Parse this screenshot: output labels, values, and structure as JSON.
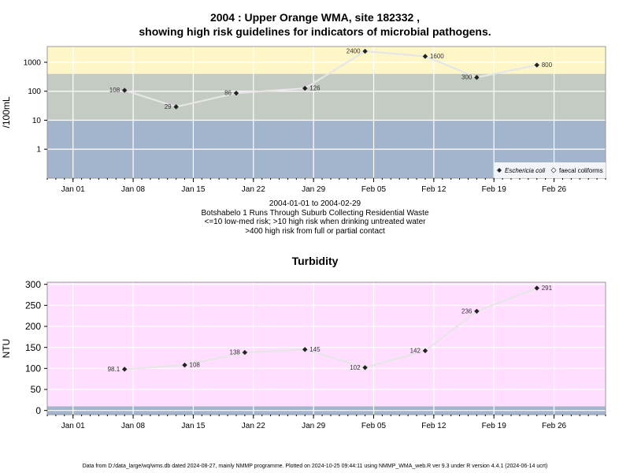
{
  "chart_data": [
    {
      "type": "line",
      "title": "2004 : Upper Orange WMA, site 182332 ,",
      "subtitle": "showing high risk guidelines for indicators of microbial pathogens.",
      "ylabel": "/100mL",
      "yscale": "log",
      "ylim": [
        0.1,
        3500
      ],
      "xlim": [
        "2003-12-29",
        "2004-03-03"
      ],
      "y_ticks": [
        {
          "label": "1",
          "value": 1
        },
        {
          "label": "10",
          "value": 10
        },
        {
          "label": "100",
          "value": 100
        },
        {
          "label": "1000",
          "value": 1000
        }
      ],
      "x_ticks": [
        {
          "label": "Jan 01",
          "date": "2004-01-01"
        },
        {
          "label": "Jan 08",
          "date": "2004-01-08"
        },
        {
          "label": "Jan 15",
          "date": "2004-01-15"
        },
        {
          "label": "Jan 22",
          "date": "2004-01-22"
        },
        {
          "label": "Jan 29",
          "date": "2004-01-29"
        },
        {
          "label": "Feb 05",
          "date": "2004-02-05"
        },
        {
          "label": "Feb 12",
          "date": "2004-02-12"
        },
        {
          "label": "Feb 19",
          "date": "2004-02-19"
        },
        {
          "label": "Feb 26",
          "date": "2004-02-26"
        }
      ],
      "bands": [
        {
          "from": 0.1,
          "to": 10,
          "color": "#a3b4cd"
        },
        {
          "from": 10,
          "to": 400,
          "color": "#c4cbc2"
        },
        {
          "from": 400,
          "to": 3500,
          "color": "#fff6c8"
        }
      ],
      "series": [
        {
          "name": "Eschericia coli",
          "points": [
            {
              "date": "2004-01-07",
              "value": 108,
              "label": "108"
            },
            {
              "date": "2004-01-13",
              "value": 29,
              "label": "29"
            },
            {
              "date": "2004-01-20",
              "value": 86,
              "label": "86"
            },
            {
              "date": "2004-01-28",
              "value": 126,
              "label": "126"
            },
            {
              "date": "2004-02-04",
              "value": 2400,
              "label": "2400"
            },
            {
              "date": "2004-02-11",
              "value": 1600,
              "label": "1600"
            },
            {
              "date": "2004-02-17",
              "value": 300,
              "label": "300"
            },
            {
              "date": "2004-02-24",
              "value": 800,
              "label": "800"
            }
          ]
        },
        {
          "name": "faecal coliforms",
          "points": []
        }
      ],
      "legend": "bottom-right",
      "grid": true,
      "caption_lines": [
        "2004-01-01 to 2004-02-29",
        "Botshabelo 1 Runs Through Suburb Collecting Residential Waste",
        "<=10 low-med risk; >10 high risk when drinking untreated water",
        ">400 high risk from full or partial contact"
      ]
    },
    {
      "type": "line",
      "title": "Turbidity",
      "ylabel": "NTU",
      "ylim": [
        -10,
        305
      ],
      "xlim": [
        "2003-12-29",
        "2004-03-03"
      ],
      "y_ticks": [
        {
          "label": "0",
          "value": 0
        },
        {
          "label": "50",
          "value": 50
        },
        {
          "label": "100",
          "value": 100
        },
        {
          "label": "150",
          "value": 150
        },
        {
          "label": "200",
          "value": 200
        },
        {
          "label": "250",
          "value": 250
        },
        {
          "label": "300",
          "value": 300
        }
      ],
      "x_ticks": [
        {
          "label": "Jan 01",
          "date": "2004-01-01"
        },
        {
          "label": "Jan 08",
          "date": "2004-01-08"
        },
        {
          "label": "Jan 15",
          "date": "2004-01-15"
        },
        {
          "label": "Jan 22",
          "date": "2004-01-22"
        },
        {
          "label": "Jan 29",
          "date": "2004-01-29"
        },
        {
          "label": "Feb 05",
          "date": "2004-02-05"
        },
        {
          "label": "Feb 12",
          "date": "2004-02-12"
        },
        {
          "label": "Feb 19",
          "date": "2004-02-19"
        },
        {
          "label": "Feb 26",
          "date": "2004-02-26"
        }
      ],
      "bands": [
        {
          "from": -10,
          "to": 10,
          "color": "#a3b4cd"
        },
        {
          "from": 10,
          "to": 305,
          "color": "#ffdeff"
        }
      ],
      "series": [
        {
          "points": [
            {
              "date": "2004-01-07",
              "value": 98.1,
              "label": "98.1"
            },
            {
              "date": "2004-01-14",
              "value": 108,
              "label": "108"
            },
            {
              "date": "2004-01-21",
              "value": 138,
              "label": "138"
            },
            {
              "date": "2004-01-28",
              "value": 145,
              "label": "145"
            },
            {
              "date": "2004-02-04",
              "value": 102,
              "label": "102"
            },
            {
              "date": "2004-02-11",
              "value": 142,
              "label": "142"
            },
            {
              "date": "2004-02-17",
              "value": 236,
              "label": "236"
            },
            {
              "date": "2004-02-24",
              "value": 291,
              "label": "291"
            }
          ]
        }
      ],
      "grid": true
    }
  ],
  "footer": "Data from D:/data_large/wq/wms.db dated 2024-08-27, mainly NMMP programme. Plotted on 2024-10-25 09:44:11 using NMMP_WMA_web.R ver 9.3 under R version 4.4.1 (2024-06-14 ucrt)"
}
